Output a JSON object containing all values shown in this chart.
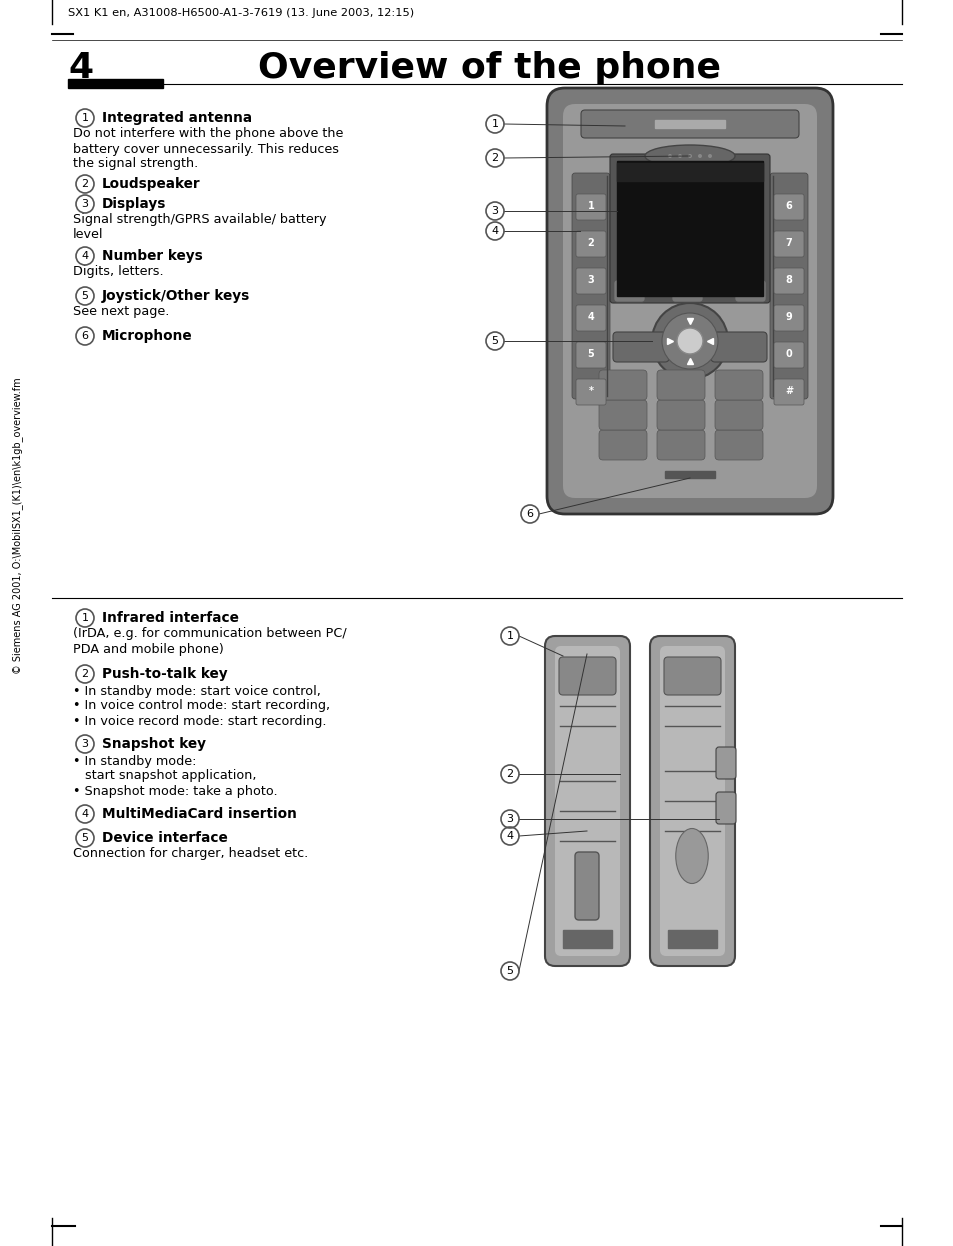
{
  "header_text": "SX1 K1 en, A31008-H6500-A1-3-7619 (13. June 2003, 12:15)",
  "page_number": "4",
  "title": "Overview of the phone",
  "section1": [
    {
      "num": "1",
      "bold": "Integrated antenna",
      "desc": "Do not interfere with the phone above the\nbattery cover unnecessarily. This reduces\nthe signal strength."
    },
    {
      "num": "2",
      "bold": "Loudspeaker",
      "desc": ""
    },
    {
      "num": "3",
      "bold": "Displays",
      "desc": "Signal strength/GPRS available/ battery\nlevel"
    },
    {
      "num": "4",
      "bold": "Number keys",
      "desc": "Digits, letters."
    },
    {
      "num": "5",
      "bold": "Joystick/Other keys",
      "desc": "See next page."
    },
    {
      "num": "6",
      "bold": "Microphone",
      "desc": ""
    }
  ],
  "section2": [
    {
      "num": "1",
      "bold": "Infrared interface",
      "desc": "(IrDA, e.g. for communication between PC/\nPDA and mobile phone)"
    },
    {
      "num": "2",
      "bold": "Push-to-talk key",
      "desc": "• In standby mode: start voice control,\n• In voice control mode: start recording,\n• In voice record mode: start recording."
    },
    {
      "num": "3",
      "bold": "Snapshot key",
      "desc": "• In standby mode:\n   start snapshot application,\n• Snapshot mode: take a photo."
    },
    {
      "num": "4",
      "bold": "MultiMediaCard insertion",
      "desc": ""
    },
    {
      "num": "5",
      "bold": "Device interface",
      "desc": "Connection for charger, headset etc."
    }
  ],
  "sidebar_text": "© Siemens AG 2001, O:\\MobilSX1_(K1)\\en\\k1gb_overview.fm",
  "bg_color": "#ffffff",
  "text_color": "#000000",
  "phone_body_color": "#aaaaaa",
  "phone_dark": "#555555",
  "phone_mid": "#888888",
  "phone_light": "#cccccc",
  "phone_screen": "#111111",
  "circle_ec": "#777777"
}
